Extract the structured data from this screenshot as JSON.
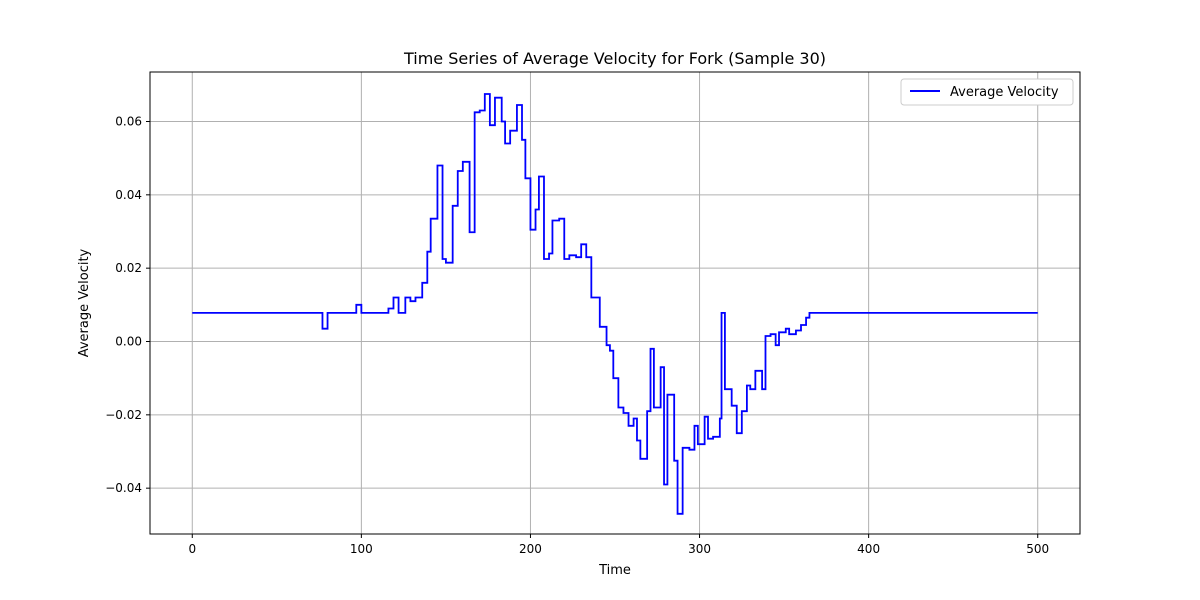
{
  "chart_data": {
    "type": "line",
    "title": "Time Series of Average Velocity for Fork (Sample 30)",
    "xlabel": "Time",
    "ylabel": "Average Velocity",
    "xlim": [
      -25,
      525
    ],
    "ylim": [
      -0.0525,
      0.0735
    ],
    "xticks": [
      0,
      100,
      200,
      300,
      400,
      500
    ],
    "xtick_labels": [
      "0",
      "100",
      "200",
      "300",
      "400",
      "500"
    ],
    "yticks": [
      -0.04,
      -0.02,
      0.0,
      0.02,
      0.04,
      0.06
    ],
    "ytick_labels": [
      "−0.04",
      "−0.02",
      "0.00",
      "0.02",
      "0.04",
      "0.06"
    ],
    "grid": true,
    "legend_position": "top-right",
    "series": [
      {
        "name": "Average Velocity",
        "color": "#0000ff",
        "step": true,
        "points": [
          [
            0,
            0.0078
          ],
          [
            76,
            0.0078
          ],
          [
            77,
            0.0035
          ],
          [
            79,
            0.0035
          ],
          [
            80,
            0.0078
          ],
          [
            96,
            0.0078
          ],
          [
            97,
            0.01
          ],
          [
            99,
            0.01
          ],
          [
            100,
            0.0078
          ],
          [
            115,
            0.0078
          ],
          [
            116,
            0.009
          ],
          [
            119,
            0.012
          ],
          [
            122,
            0.0078
          ],
          [
            126,
            0.012
          ],
          [
            129,
            0.011
          ],
          [
            132,
            0.012
          ],
          [
            136,
            0.016
          ],
          [
            139,
            0.0245
          ],
          [
            141,
            0.0335
          ],
          [
            145,
            0.048
          ],
          [
            148,
            0.0225
          ],
          [
            150,
            0.0215
          ],
          [
            154,
            0.037
          ],
          [
            157,
            0.0465
          ],
          [
            160,
            0.049
          ],
          [
            164,
            0.0298
          ],
          [
            167,
            0.0625
          ],
          [
            170,
            0.063
          ],
          [
            173,
            0.0675
          ],
          [
            176,
            0.059
          ],
          [
            179,
            0.0665
          ],
          [
            183,
            0.06
          ],
          [
            185,
            0.054
          ],
          [
            188,
            0.0575
          ],
          [
            192,
            0.0645
          ],
          [
            195,
            0.055
          ],
          [
            197,
            0.0445
          ],
          [
            200,
            0.0305
          ],
          [
            203,
            0.036
          ],
          [
            205,
            0.045
          ],
          [
            208,
            0.0225
          ],
          [
            211,
            0.024
          ],
          [
            213,
            0.033
          ],
          [
            217,
            0.0335
          ],
          [
            220,
            0.0225
          ],
          [
            223,
            0.0235
          ],
          [
            227,
            0.023
          ],
          [
            230,
            0.0265
          ],
          [
            233,
            0.023
          ],
          [
            236,
            0.012
          ],
          [
            241,
            0.004
          ],
          [
            245,
            -0.001
          ],
          [
            247,
            -0.0025
          ],
          [
            249,
            -0.01
          ],
          [
            252,
            -0.018
          ],
          [
            255,
            -0.0195
          ],
          [
            258,
            -0.023
          ],
          [
            261,
            -0.021
          ],
          [
            263,
            -0.027
          ],
          [
            265,
            -0.032
          ],
          [
            269,
            -0.019
          ],
          [
            271,
            -0.002
          ],
          [
            273,
            -0.018
          ],
          [
            277,
            -0.007
          ],
          [
            279,
            -0.039
          ],
          [
            281,
            -0.0145
          ],
          [
            285,
            -0.0325
          ],
          [
            287,
            -0.047
          ],
          [
            290,
            -0.029
          ],
          [
            294,
            -0.0295
          ],
          [
            297,
            -0.023
          ],
          [
            299,
            -0.028
          ],
          [
            303,
            -0.0205
          ],
          [
            305,
            -0.0265
          ],
          [
            308,
            -0.026
          ],
          [
            312,
            -0.021
          ],
          [
            313,
            0.0078
          ],
          [
            315,
            -0.013
          ],
          [
            319,
            -0.0175
          ],
          [
            322,
            -0.025
          ],
          [
            325,
            -0.019
          ],
          [
            328,
            -0.012
          ],
          [
            330,
            -0.013
          ],
          [
            333,
            -0.008
          ],
          [
            337,
            -0.013
          ],
          [
            339,
            0.0015
          ],
          [
            342,
            0.002
          ],
          [
            345,
            -0.001
          ],
          [
            347,
            0.0025
          ],
          [
            351,
            0.0035
          ],
          [
            353,
            0.002
          ],
          [
            357,
            0.003
          ],
          [
            360,
            0.0045
          ],
          [
            363,
            0.0065
          ],
          [
            365,
            0.0078
          ],
          [
            400,
            0.0078
          ],
          [
            500,
            0.0078
          ]
        ]
      }
    ]
  }
}
